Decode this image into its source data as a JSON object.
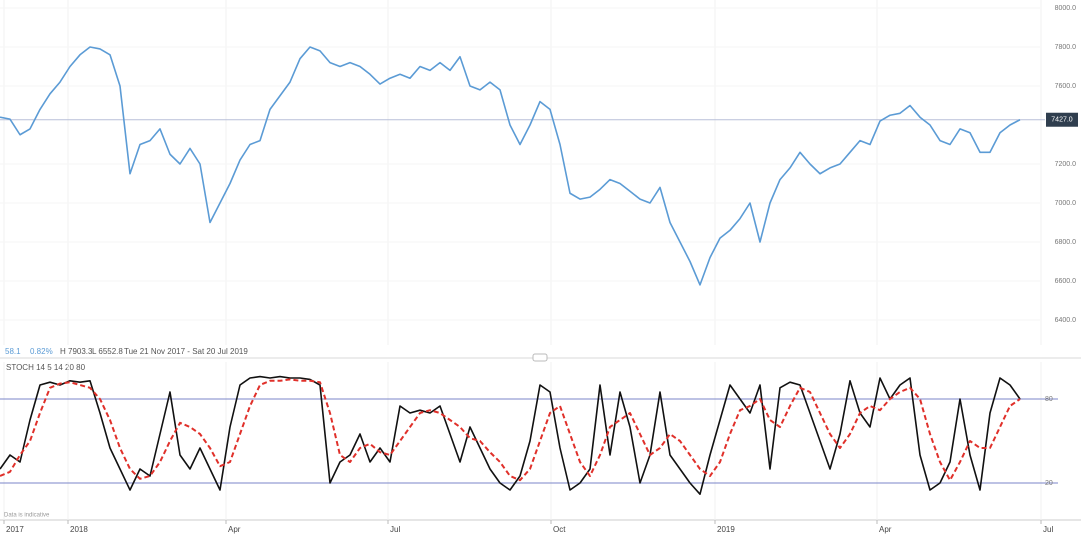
{
  "chart_data": [
    {
      "type": "line",
      "color": "#5b9bd5",
      "ylim": [
        6300,
        8000
      ],
      "yticks": [
        {
          "value": 8000,
          "label": "8000.0"
        },
        {
          "value": 7800,
          "label": "7800.0"
        },
        {
          "value": 7600,
          "label": "7600.0"
        },
        {
          "value": 7200,
          "label": "7200.0"
        },
        {
          "value": 7000,
          "label": "7000.0"
        },
        {
          "value": 6800,
          "label": "6800.0"
        },
        {
          "value": 6600,
          "label": "6600.0"
        },
        {
          "value": 6400,
          "label": "6400.0"
        }
      ],
      "last_value": {
        "value": 7427,
        "label": "7427.0"
      },
      "info": [
        "58.1",
        "0.82%",
        "H 7903.3",
        "L 6552.8",
        "Tue 21 Nov 2017 - Sat 20 Jul 2019"
      ],
      "values": [
        7440,
        7430,
        7350,
        7380,
        7480,
        7560,
        7620,
        7700,
        7760,
        7800,
        7790,
        7760,
        7600,
        7150,
        7300,
        7320,
        7380,
        7250,
        7200,
        7280,
        7200,
        6900,
        7000,
        7100,
        7220,
        7300,
        7320,
        7480,
        7550,
        7620,
        7740,
        7800,
        7780,
        7720,
        7700,
        7720,
        7700,
        7660,
        7610,
        7640,
        7660,
        7640,
        7700,
        7680,
        7720,
        7680,
        7750,
        7600,
        7580,
        7620,
        7580,
        7400,
        7300,
        7400,
        7520,
        7480,
        7300,
        7050,
        7020,
        7030,
        7070,
        7120,
        7100,
        7060,
        7020,
        7000,
        7080,
        6900,
        6800,
        6700,
        6580,
        6720,
        6820,
        6860,
        6920,
        7000,
        6800,
        7000,
        7120,
        7180,
        7260,
        7200,
        7150,
        7180,
        7200,
        7260,
        7320,
        7300,
        7420,
        7450,
        7460,
        7500,
        7440,
        7400,
        7320,
        7300,
        7380,
        7360,
        7260,
        7260,
        7360,
        7400,
        7427
      ]
    },
    {
      "type": "line",
      "title": "STOCH 14 5 14 20 80",
      "ylim": [
        0,
        100
      ],
      "yticks": [
        20,
        80
      ],
      "xlim": [
        0,
        106
      ],
      "xticks": [
        {
          "value": 0.4,
          "label": "2017"
        },
        {
          "value": 6.8,
          "label": "2018"
        },
        {
          "value": 22.6,
          "label": "Apr"
        },
        {
          "value": 38.8,
          "label": "Jul"
        },
        {
          "value": 55.1,
          "label": "Oct"
        },
        {
          "value": 71.5,
          "label": "2019"
        },
        {
          "value": 87.7,
          "label": "Apr"
        },
        {
          "value": 104.1,
          "label": "Jul"
        }
      ],
      "note": "Data is indicative",
      "series": [
        {
          "color": "#111111",
          "dash": false,
          "values": [
            30,
            40,
            35,
            65,
            90,
            92,
            90,
            93,
            92,
            93,
            70,
            45,
            30,
            15,
            30,
            25,
            55,
            85,
            40,
            30,
            45,
            30,
            15,
            60,
            90,
            95,
            96,
            95,
            96,
            95,
            95,
            94,
            90,
            20,
            35,
            40,
            55,
            35,
            45,
            35,
            75,
            70,
            72,
            70,
            75,
            55,
            35,
            60,
            45,
            30,
            20,
            15,
            25,
            50,
            90,
            85,
            45,
            15,
            20,
            30,
            90,
            40,
            85,
            60,
            20,
            40,
            85,
            40,
            30,
            20,
            12,
            40,
            65,
            90,
            80,
            70,
            90,
            30,
            88,
            92,
            90,
            70,
            50,
            30,
            55,
            93,
            70,
            60,
            95,
            80,
            90,
            95,
            40,
            15,
            20,
            35,
            80,
            40,
            15,
            70,
            95,
            90,
            80
          ]
        },
        {
          "color": "#e0302a",
          "dash": true,
          "values": [
            25,
            28,
            40,
            50,
            70,
            88,
            91,
            92,
            90,
            88,
            80,
            65,
            45,
            30,
            23,
            25,
            35,
            50,
            63,
            60,
            55,
            45,
            32,
            35,
            55,
            75,
            90,
            93,
            93,
            94,
            93,
            93,
            92,
            70,
            40,
            35,
            45,
            48,
            42,
            40,
            50,
            60,
            70,
            72,
            70,
            65,
            60,
            52,
            50,
            42,
            35,
            25,
            22,
            30,
            50,
            70,
            75,
            55,
            35,
            25,
            40,
            60,
            65,
            70,
            55,
            40,
            45,
            55,
            50,
            40,
            30,
            25,
            35,
            55,
            72,
            75,
            80,
            65,
            60,
            75,
            88,
            85,
            70,
            55,
            45,
            55,
            70,
            75,
            72,
            80,
            85,
            88,
            80,
            55,
            35,
            22,
            35,
            50,
            45,
            45,
            60,
            75,
            80
          ]
        }
      ]
    }
  ]
}
